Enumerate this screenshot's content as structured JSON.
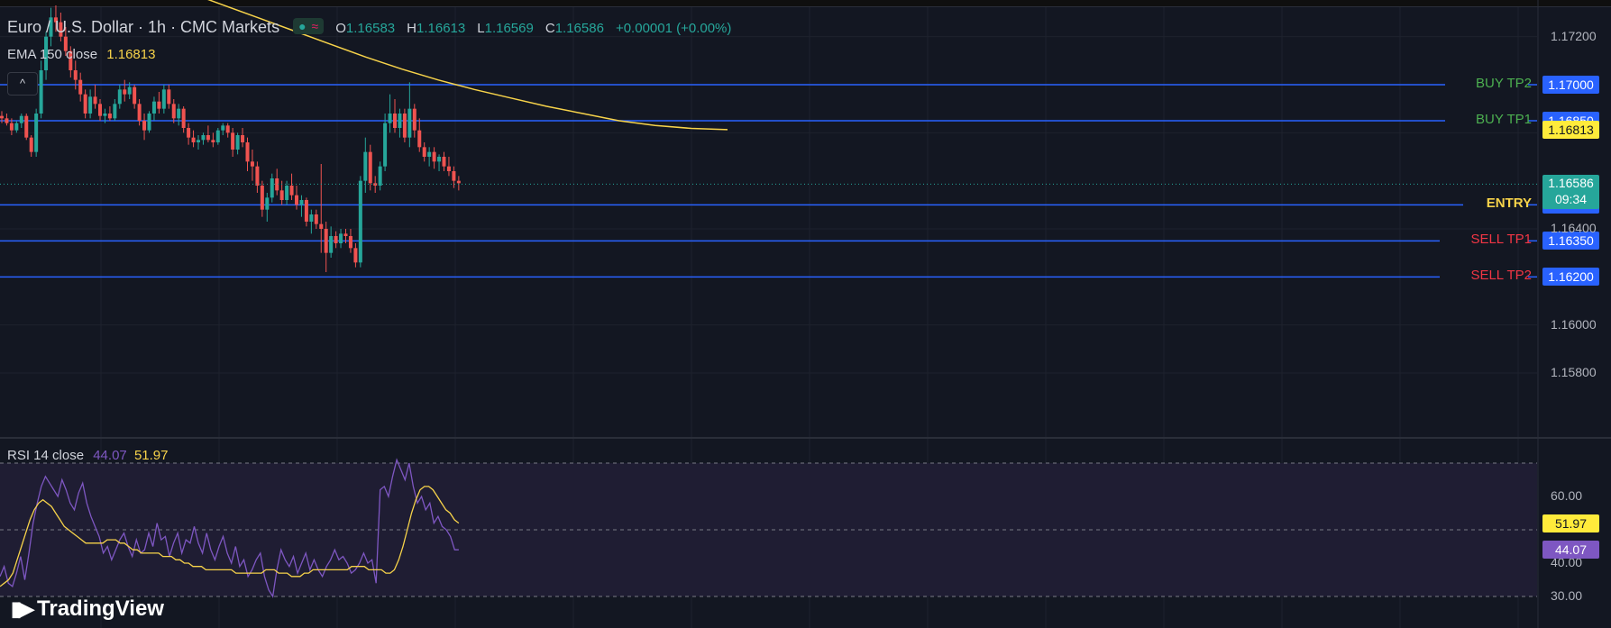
{
  "header": {
    "symbol": "Euro / U.S. Dollar · 1h · CMC Markets",
    "ohlc": [
      {
        "key": "O",
        "value": "1.16583"
      },
      {
        "key": "H",
        "value": "1.16613"
      },
      {
        "key": "L",
        "value": "1.16569"
      },
      {
        "key": "C",
        "value": "1.16586"
      }
    ],
    "change": "+0.00001 (+0.00%)",
    "collapse_glyph": "^"
  },
  "ema_legend": {
    "label": "EMA 150 close",
    "value": "1.16813"
  },
  "rsi_legend": {
    "label": "RSI 14 close",
    "value1": "44.07",
    "value2": "51.97"
  },
  "branding": {
    "name": "TradingView"
  },
  "colors": {
    "background": "#131722",
    "up": "#26a69a",
    "down": "#ef5350",
    "level_line": "#2962ff",
    "ema": "#f7d34a",
    "rsi": "#7e57c2",
    "rsi_ma": "#f7d34a",
    "buy_label": "#4caf50",
    "sell_label": "#f23645",
    "entry_label": "#f7d34a"
  },
  "chart_data": [
    {
      "type": "candlestick",
      "title": "Euro / U.S. Dollar · 1h · CMC Markets",
      "y_axis_ticks": [
        "1.17200",
        "1.16400",
        "1.16000",
        "1.15800"
      ],
      "ylim": [
        1.1572,
        1.1733
      ],
      "levels": [
        {
          "label": "BUY TP2",
          "price": "1.17000"
        },
        {
          "label": "BUY TP1",
          "price": "1.16850"
        },
        {
          "label": "ENTRY",
          "price": "1.16500"
        },
        {
          "label": "SELL TP1",
          "price": "1.16350"
        },
        {
          "label": "SELL TP2",
          "price": "1.16200"
        }
      ],
      "last_price": {
        "value": "1.16586",
        "countdown": "09:34"
      },
      "ema": {
        "name": "EMA 150 close",
        "last": "1.16813",
        "values": [
          1.1739,
          1.17335,
          1.1728,
          1.17225,
          1.1717,
          1.17115,
          1.17065,
          1.1702,
          1.1698,
          1.16945,
          1.1691,
          1.1688,
          1.1685,
          1.1683,
          1.16818,
          1.16813
        ]
      },
      "candles": [
        [
          1.1687,
          1.1689,
          1.1684,
          1.1686
        ],
        [
          1.1686,
          1.1688,
          1.1683,
          1.1684
        ],
        [
          1.1684,
          1.1686,
          1.1679,
          1.1681
        ],
        [
          1.1681,
          1.1685,
          1.168,
          1.1684
        ],
        [
          1.1684,
          1.1688,
          1.1682,
          1.1687
        ],
        [
          1.1687,
          1.1688,
          1.1677,
          1.1678
        ],
        [
          1.1678,
          1.1679,
          1.167,
          1.1672
        ],
        [
          1.1672,
          1.169,
          1.167,
          1.1688
        ],
        [
          1.1688,
          1.171,
          1.1686,
          1.1706
        ],
        [
          1.1706,
          1.1722,
          1.1702,
          1.172
        ],
        [
          1.172,
          1.1732,
          1.1716,
          1.1728
        ],
        [
          1.1728,
          1.1733,
          1.1722,
          1.1726
        ],
        [
          1.1726,
          1.173,
          1.1718,
          1.172
        ],
        [
          1.172,
          1.1724,
          1.1712,
          1.1714
        ],
        [
          1.1714,
          1.1716,
          1.1703,
          1.1706
        ],
        [
          1.1706,
          1.171,
          1.1698,
          1.1702
        ],
        [
          1.1702,
          1.1705,
          1.1693,
          1.1696
        ],
        [
          1.1696,
          1.1698,
          1.1686,
          1.1688
        ],
        [
          1.1688,
          1.1698,
          1.1686,
          1.1695
        ],
        [
          1.1695,
          1.17,
          1.169,
          1.1692
        ],
        [
          1.1692,
          1.1694,
          1.1685,
          1.1687
        ],
        [
          1.1687,
          1.169,
          1.1684,
          1.1688
        ],
        [
          1.1688,
          1.1691,
          1.1685,
          1.1686
        ],
        [
          1.1686,
          1.1694,
          1.1685,
          1.1692
        ],
        [
          1.1692,
          1.17,
          1.169,
          1.1698
        ],
        [
          1.1698,
          1.1702,
          1.1693,
          1.1696
        ],
        [
          1.1696,
          1.1701,
          1.1694,
          1.1699
        ],
        [
          1.1699,
          1.17,
          1.169,
          1.1692
        ],
        [
          1.1692,
          1.1694,
          1.1683,
          1.1685
        ],
        [
          1.1685,
          1.1688,
          1.1677,
          1.1681
        ],
        [
          1.1681,
          1.1689,
          1.168,
          1.1688
        ],
        [
          1.1688,
          1.1695,
          1.1685,
          1.1693
        ],
        [
          1.1693,
          1.1697,
          1.1688,
          1.169
        ],
        [
          1.169,
          1.17,
          1.1688,
          1.1698
        ],
        [
          1.1698,
          1.17,
          1.169,
          1.1692
        ],
        [
          1.1692,
          1.1694,
          1.1684,
          1.1686
        ],
        [
          1.1686,
          1.1692,
          1.1683,
          1.169
        ],
        [
          1.169,
          1.1691,
          1.168,
          1.1682
        ],
        [
          1.1682,
          1.1684,
          1.1675,
          1.1678
        ],
        [
          1.1678,
          1.1681,
          1.1674,
          1.1676
        ],
        [
          1.1676,
          1.1679,
          1.1673,
          1.1677
        ],
        [
          1.1677,
          1.168,
          1.1675,
          1.1679
        ],
        [
          1.1679,
          1.1683,
          1.1676,
          1.1677
        ],
        [
          1.1677,
          1.168,
          1.1674,
          1.1676
        ],
        [
          1.1676,
          1.1682,
          1.1675,
          1.1681
        ],
        [
          1.1681,
          1.1684,
          1.1679,
          1.1683
        ],
        [
          1.1683,
          1.1684,
          1.1678,
          1.168
        ],
        [
          1.168,
          1.1682,
          1.167,
          1.1673
        ],
        [
          1.1673,
          1.168,
          1.1671,
          1.1679
        ],
        [
          1.1679,
          1.1682,
          1.1674,
          1.1676
        ],
        [
          1.1676,
          1.1678,
          1.1664,
          1.1668
        ],
        [
          1.1668,
          1.1673,
          1.166,
          1.1666
        ],
        [
          1.1666,
          1.1668,
          1.1655,
          1.1658
        ],
        [
          1.1658,
          1.166,
          1.1645,
          1.1648
        ],
        [
          1.1648,
          1.1655,
          1.1643,
          1.1653
        ],
        [
          1.1653,
          1.1663,
          1.1651,
          1.1661
        ],
        [
          1.1661,
          1.1665,
          1.1654,
          1.1656
        ],
        [
          1.1656,
          1.166,
          1.165,
          1.1652
        ],
        [
          1.1652,
          1.166,
          1.165,
          1.1658
        ],
        [
          1.1658,
          1.1663,
          1.1652,
          1.1654
        ],
        [
          1.1654,
          1.1658,
          1.1648,
          1.165
        ],
        [
          1.165,
          1.1654,
          1.1645,
          1.1652
        ],
        [
          1.1652,
          1.1653,
          1.1641,
          1.1643
        ],
        [
          1.1643,
          1.1648,
          1.1638,
          1.1646
        ],
        [
          1.1646,
          1.1648,
          1.164,
          1.1642
        ],
        [
          1.1642,
          1.1667,
          1.163,
          1.164
        ],
        [
          1.164,
          1.1643,
          1.1622,
          1.163
        ],
        [
          1.163,
          1.1641,
          1.1628,
          1.1637
        ],
        [
          1.1637,
          1.1639,
          1.1632,
          1.1634
        ],
        [
          1.1634,
          1.164,
          1.1632,
          1.1638
        ],
        [
          1.1638,
          1.164,
          1.1634,
          1.1637
        ],
        [
          1.1637,
          1.164,
          1.163,
          1.1632
        ],
        [
          1.1632,
          1.1634,
          1.1624,
          1.1626
        ],
        [
          1.1626,
          1.1662,
          1.1624,
          1.166
        ],
        [
          1.166,
          1.1678,
          1.1655,
          1.1672
        ],
        [
          1.1672,
          1.1675,
          1.1656,
          1.1659
        ],
        [
          1.1659,
          1.1662,
          1.1655,
          1.1658
        ],
        [
          1.1658,
          1.1668,
          1.1656,
          1.1666
        ],
        [
          1.1666,
          1.1688,
          1.1664,
          1.1684
        ],
        [
          1.1684,
          1.1696,
          1.168,
          1.1688
        ],
        [
          1.1688,
          1.1694,
          1.168,
          1.1682
        ],
        [
          1.1682,
          1.169,
          1.1678,
          1.1688
        ],
        [
          1.1688,
          1.169,
          1.1676,
          1.1678
        ],
        [
          1.1678,
          1.1701,
          1.1674,
          1.169
        ],
        [
          1.169,
          1.1692,
          1.1678,
          1.1681
        ],
        [
          1.1681,
          1.1686,
          1.1672,
          1.1674
        ],
        [
          1.1674,
          1.1676,
          1.1668,
          1.167
        ],
        [
          1.167,
          1.1674,
          1.1666,
          1.1672
        ],
        [
          1.1672,
          1.1674,
          1.1665,
          1.1668
        ],
        [
          1.1668,
          1.1671,
          1.1664,
          1.167
        ],
        [
          1.167,
          1.1672,
          1.1664,
          1.1666
        ],
        [
          1.1666,
          1.167,
          1.1662,
          1.1664
        ],
        [
          1.1664,
          1.1666,
          1.1657,
          1.166
        ],
        [
          1.166,
          1.1662,
          1.1656,
          1.1659
        ]
      ]
    },
    {
      "type": "line",
      "title": "RSI 14 close",
      "y_axis_ticks": [
        "60.00",
        "40.00",
        "30.00"
      ],
      "ylim": [
        28,
        74
      ],
      "reference_levels": [
        70,
        50,
        30
      ],
      "series": [
        {
          "name": "RSI",
          "last": "44.07",
          "values": [
            36,
            39,
            34,
            33,
            37,
            42,
            35,
            43,
            52,
            58,
            63,
            66,
            64,
            62,
            60,
            65,
            62,
            58,
            56,
            61,
            64,
            58,
            54,
            51,
            48,
            43,
            45,
            41,
            44,
            47,
            49,
            45,
            42,
            47,
            43,
            44,
            49,
            45,
            52,
            47,
            48,
            42,
            46,
            49,
            43,
            47,
            46,
            51,
            46,
            43,
            49,
            44,
            41,
            45,
            48,
            43,
            40,
            45,
            39,
            41,
            36,
            38,
            41,
            43,
            36,
            32,
            30,
            38,
            44,
            41,
            39,
            42,
            37,
            40,
            43,
            38,
            41,
            38,
            36,
            39,
            41,
            44,
            41,
            42,
            40,
            37,
            38,
            40,
            43,
            40,
            41,
            34,
            62,
            63,
            60,
            66,
            71,
            68,
            65,
            70,
            63,
            58,
            60,
            56,
            58,
            52,
            54,
            51,
            50,
            48,
            44,
            44
          ]
        },
        {
          "name": "RSI MA",
          "last": "51.97",
          "values": [
            33,
            34,
            35,
            37,
            41,
            45,
            49,
            53,
            56,
            58,
            59,
            58,
            57,
            55,
            53,
            51,
            50,
            49,
            48,
            47,
            46,
            46,
            46,
            46,
            46,
            47,
            47,
            47,
            46,
            46,
            45,
            44,
            44,
            43,
            43,
            43,
            43,
            43,
            42,
            42,
            42,
            41,
            41,
            40,
            40,
            39,
            39,
            39,
            38,
            38,
            38,
            38,
            38,
            38,
            38,
            37,
            37,
            37,
            37,
            37,
            37,
            37,
            38,
            38,
            38,
            37,
            37,
            37,
            36,
            36,
            36,
            37,
            37,
            38,
            38,
            38,
            38,
            38,
            38,
            38,
            38,
            38,
            39,
            39,
            39,
            39,
            38,
            38,
            38,
            38,
            37,
            37,
            38,
            41,
            45,
            50,
            55,
            59,
            62,
            63,
            63,
            62,
            60,
            58,
            56,
            55,
            53,
            52
          ]
        }
      ]
    }
  ]
}
